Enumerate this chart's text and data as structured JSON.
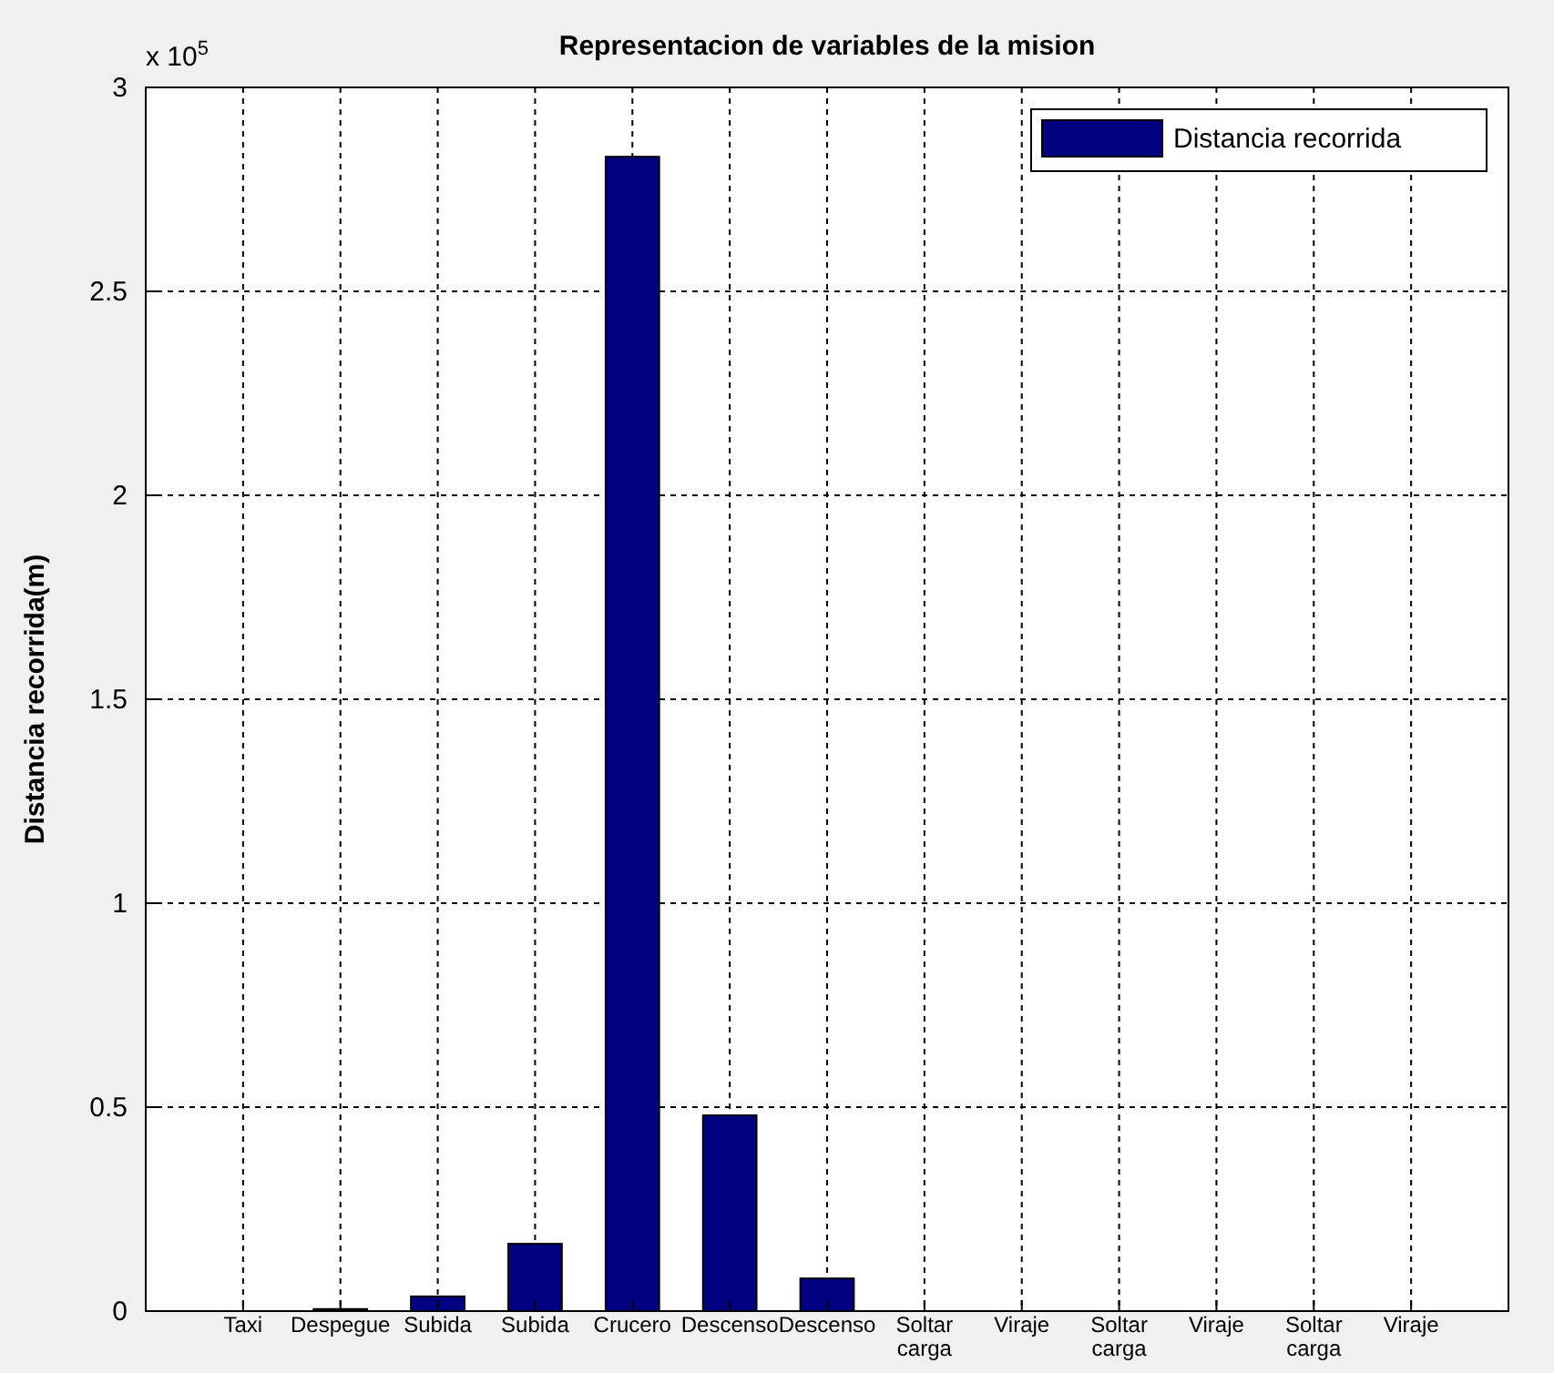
{
  "chart_data": {
    "type": "bar",
    "title": "Representacion de variables de la mision",
    "ylabel": "Distancia recorrida(m)",
    "categories": [
      "Taxi",
      "Despegue",
      "Subida",
      "Subida",
      "Crucero",
      "Descenso",
      "Descenso",
      "Soltar carga",
      "Viraje",
      "Soltar carga",
      "Viraje",
      "Soltar carga",
      "Viraje"
    ],
    "series": [
      {
        "name": "Distancia recorrida",
        "color": "#000080",
        "values": [
          0,
          0.005,
          0.036,
          0.165,
          2.83,
          0.48,
          0.08,
          0,
          0,
          0,
          0,
          0,
          0
        ]
      }
    ],
    "ylim": [
      0,
      3
    ],
    "yticks": [
      0,
      0.5,
      1,
      1.5,
      2,
      2.5,
      3
    ],
    "annotations": [
      "x 10$^{5}$"
    ],
    "grid": true,
    "legend": "top right"
  }
}
